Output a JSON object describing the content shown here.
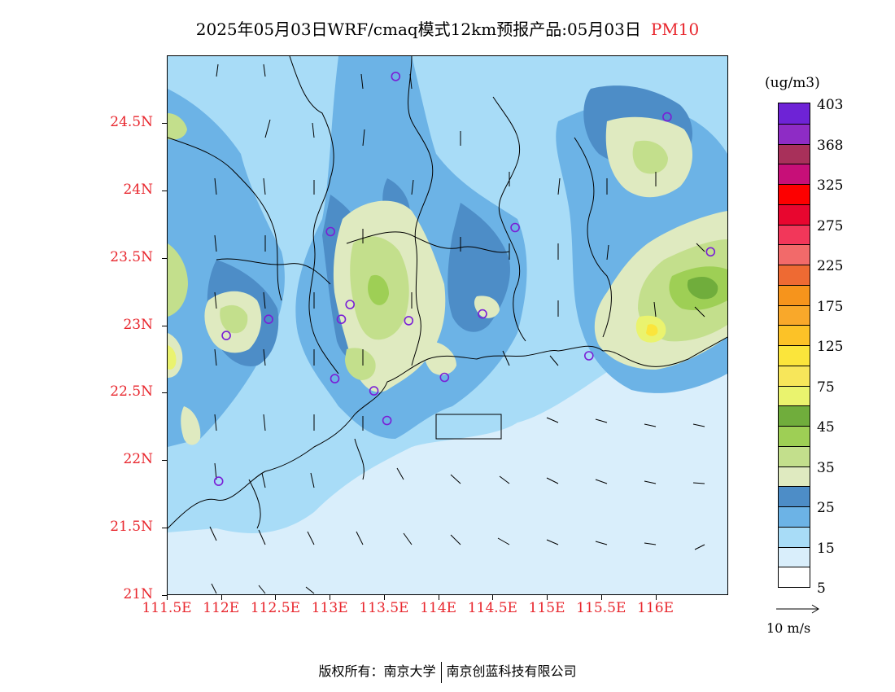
{
  "title": {
    "text": "2025年05月03日WRF/cmaq模式12km预报产品:05月03日",
    "pollutant": "PM10"
  },
  "map": {
    "lon_range": [
      111.5,
      116.67
    ],
    "lat_range": [
      21.0,
      25.0
    ],
    "lat_labels": [
      {
        "lat": 24.5,
        "label": "24.5N"
      },
      {
        "lat": 24.0,
        "label": "24N"
      },
      {
        "lat": 23.5,
        "label": "23.5N"
      },
      {
        "lat": 23.0,
        "label": "23N"
      },
      {
        "lat": 22.5,
        "label": "22.5N"
      },
      {
        "lat": 22.0,
        "label": "22N"
      },
      {
        "lat": 21.5,
        "label": "21.5N"
      },
      {
        "lat": 21.0,
        "label": "21N"
      }
    ],
    "lon_labels": [
      {
        "lon": 111.5,
        "label": "111.5E"
      },
      {
        "lon": 112.0,
        "label": "112E"
      },
      {
        "lon": 112.5,
        "label": "112.5E"
      },
      {
        "lon": 113.0,
        "label": "113E"
      },
      {
        "lon": 113.5,
        "label": "113.5E"
      },
      {
        "lon": 114.0,
        "label": "114E"
      },
      {
        "lon": 114.5,
        "label": "114.5E"
      },
      {
        "lon": 115.0,
        "label": "115E"
      },
      {
        "lon": 115.5,
        "label": "115.5E"
      },
      {
        "lon": 116.0,
        "label": "116E"
      }
    ],
    "stations": [
      {
        "lon": 113.6,
        "lat": 24.85
      },
      {
        "lon": 116.1,
        "lat": 24.55
      },
      {
        "lon": 113.0,
        "lat": 23.7
      },
      {
        "lon": 114.7,
        "lat": 23.73
      },
      {
        "lon": 116.5,
        "lat": 23.55
      },
      {
        "lon": 113.18,
        "lat": 23.16
      },
      {
        "lon": 112.43,
        "lat": 23.05
      },
      {
        "lon": 113.1,
        "lat": 23.05
      },
      {
        "lon": 113.72,
        "lat": 23.04
      },
      {
        "lon": 114.4,
        "lat": 23.09
      },
      {
        "lon": 112.04,
        "lat": 22.93
      },
      {
        "lon": 115.38,
        "lat": 22.78
      },
      {
        "lon": 113.04,
        "lat": 22.61
      },
      {
        "lon": 113.4,
        "lat": 22.52
      },
      {
        "lon": 114.05,
        "lat": 22.62
      },
      {
        "lon": 113.52,
        "lat": 22.3
      },
      {
        "lon": 111.97,
        "lat": 21.85
      }
    ]
  },
  "legend": {
    "unit": "(ug/m3)",
    "colors": [
      "#ffffff",
      "#d9eefb",
      "#a8dcf7",
      "#6cb3e6",
      "#4d8dc7",
      "#dfeac0",
      "#c3df8c",
      "#9ecf55",
      "#70ad3c",
      "#eaf36e",
      "#f7e65a",
      "#fbe53b",
      "#fcc227",
      "#f9a82a",
      "#f6941c",
      "#ee6a33",
      "#f26a6a",
      "#f2375a",
      "#e8062f",
      "#fd0000",
      "#c70f78",
      "#a8305a",
      "#8e2cc5",
      "#6e23d6"
    ],
    "labels": [
      "5",
      "15",
      "25",
      "35",
      "45",
      "75",
      "125",
      "175",
      "225",
      "275",
      "325",
      "368",
      "403"
    ]
  },
  "wind_reference": {
    "label": "10  m/s"
  },
  "footer": {
    "left": "版权所有：南京大学",
    "right": "南京创蓝科技有限公司"
  }
}
